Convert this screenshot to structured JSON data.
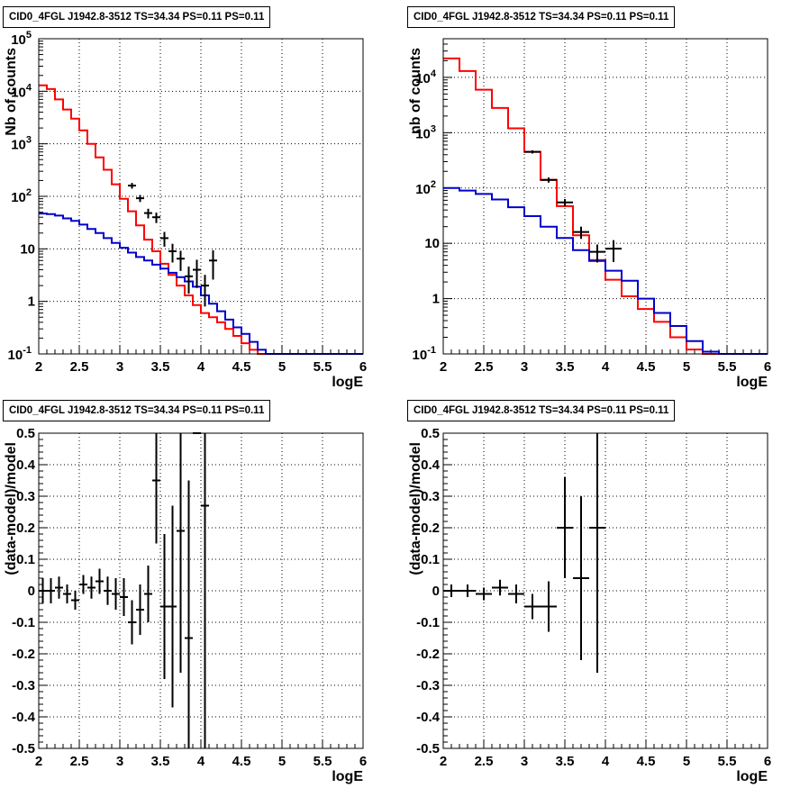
{
  "chart_data": [
    {
      "type": "histogram",
      "title": "CID0_4FGL J1942.8-3512 TS=34.34 PS=0.11 PS=0.11",
      "xlabel": "logE",
      "ylabel": "Nb of counts",
      "xlim": [
        2,
        6
      ],
      "ylim": [
        0.1,
        100000
      ],
      "yscale": "log",
      "grid": true,
      "xticks": [
        "2",
        "2.5",
        "3",
        "3.5",
        "4",
        "4.5",
        "5",
        "5.5",
        "6"
      ],
      "yticks": [
        "10^-1",
        "1",
        "10",
        "10^2",
        "10^3",
        "10^4",
        "10^5"
      ],
      "series": [
        {
          "color": "#ff0000",
          "bin_width": 0.1,
          "x": [
            2.0,
            2.1,
            2.2,
            2.3,
            2.4,
            2.5,
            2.6,
            2.7,
            2.8,
            2.9,
            3.0,
            3.1,
            3.2,
            3.3,
            3.4,
            3.5,
            3.6,
            3.7,
            3.8,
            3.9,
            4.0,
            4.1,
            4.2,
            4.3,
            4.4,
            4.5,
            4.6,
            4.7,
            4.8,
            4.9,
            5.0,
            5.1,
            5.2,
            5.3,
            5.4,
            5.5,
            5.6,
            5.7,
            5.8,
            5.9
          ],
          "values": [
            13000,
            11000,
            7000,
            4500,
            3000,
            1800,
            1000,
            550,
            320,
            170,
            90,
            52,
            28,
            15,
            9,
            5.2,
            3.2,
            2.0,
            1.3,
            0.85,
            0.6,
            0.5,
            0.4,
            0.3,
            0.22,
            0.16,
            0.12,
            0.1,
            0.1,
            0.1,
            0.1,
            0.1,
            0.1,
            0.1,
            0.1,
            0.1,
            0.1,
            0.1,
            0.1,
            0.1
          ]
        },
        {
          "color": "#0000cc",
          "bin_width": 0.1,
          "x": [
            2.0,
            2.1,
            2.2,
            2.3,
            2.4,
            2.5,
            2.6,
            2.7,
            2.8,
            2.9,
            3.0,
            3.1,
            3.2,
            3.3,
            3.4,
            3.5,
            3.6,
            3.7,
            3.8,
            3.9,
            4.0,
            4.1,
            4.2,
            4.3,
            4.4,
            4.5,
            4.6,
            4.7,
            4.8,
            4.9,
            5.0,
            5.1,
            5.2,
            5.3,
            5.4,
            5.5,
            5.6,
            5.7,
            5.8,
            5.9
          ],
          "values": [
            47,
            46,
            43,
            38,
            34,
            29,
            24,
            20,
            16,
            13,
            10.5,
            8.5,
            7,
            6,
            5,
            4.2,
            3.5,
            2.9,
            2.4,
            1.9,
            1.3,
            0.9,
            0.65,
            0.45,
            0.32,
            0.24,
            0.17,
            0.12,
            0.1,
            0.1,
            0.1,
            0.1,
            0.1,
            0.1,
            0.1,
            0.1,
            0.1,
            0.1,
            0.1,
            0.1
          ]
        }
      ],
      "points": {
        "x": [
          3.15,
          3.25,
          3.35,
          3.45,
          3.55,
          3.65,
          3.75,
          3.85,
          3.95,
          4.05,
          4.15
        ],
        "y": [
          160,
          92,
          48,
          40,
          16,
          9,
          6.5,
          3,
          4,
          2,
          6
        ],
        "err_low": [
          140,
          78,
          38,
          31,
          11,
          5.5,
          3.8,
          1.4,
          1.8,
          0.8,
          2.6
        ],
        "err_high": [
          180,
          106,
          58,
          49,
          21,
          12.5,
          9.2,
          4.6,
          6.2,
          3.2,
          9.4
        ]
      }
    },
    {
      "type": "histogram",
      "title": "CID0_4FGL J1942.8-3512 TS=34.34 PS=0.11 PS=0.11",
      "xlabel": "logE",
      "ylabel": "nb of counts",
      "xlim": [
        2,
        6
      ],
      "ylim": [
        0.1,
        50000
      ],
      "yscale": "log",
      "grid": true,
      "xticks": [
        "2",
        "2.5",
        "3",
        "3.5",
        "4",
        "4.5",
        "5",
        "5.5",
        "6"
      ],
      "yticks": [
        "10^-1",
        "1",
        "10",
        "10^2",
        "10^3",
        "10^4"
      ],
      "series": [
        {
          "color": "#ff0000",
          "bin_width": 0.2,
          "x": [
            2.0,
            2.2,
            2.4,
            2.6,
            2.8,
            3.0,
            3.2,
            3.4,
            3.6,
            3.8,
            4.0,
            4.2,
            4.4,
            4.6,
            4.8,
            5.0,
            5.2,
            5.4,
            5.6,
            5.8
          ],
          "values": [
            22000,
            13000,
            6000,
            2800,
            1200,
            450,
            140,
            47,
            14,
            5,
            2.2,
            1.1,
            0.65,
            0.38,
            0.2,
            0.12,
            0.1,
            0.1,
            0.1,
            0.1
          ]
        },
        {
          "color": "#0000cc",
          "bin_width": 0.2,
          "x": [
            2.0,
            2.2,
            2.4,
            2.6,
            2.8,
            3.0,
            3.2,
            3.4,
            3.6,
            3.8,
            4.0,
            4.2,
            4.4,
            4.6,
            4.8,
            5.0,
            5.2,
            5.4,
            5.6,
            5.8
          ],
          "values": [
            100,
            90,
            78,
            62,
            45,
            31,
            20,
            12.5,
            7.5,
            4.8,
            3.2,
            2.1,
            1.0,
            0.55,
            0.32,
            0.17,
            0.11,
            0.1,
            0.1,
            0.1
          ]
        }
      ],
      "points": {
        "x": [
          3.1,
          3.3,
          3.5,
          3.7,
          3.9,
          4.1
        ],
        "y": [
          450,
          140,
          55,
          16,
          7,
          8
        ],
        "err_low": [
          420,
          125,
          47,
          12,
          4.5,
          4.6
        ],
        "err_high": [
          480,
          155,
          63,
          20,
          9.5,
          11.4
        ],
        "xerr": 0.1
      }
    },
    {
      "type": "scatter",
      "title": "CID0_4FGL J1942.8-3512 TS=34.34 PS=0.11 PS=0.11",
      "xlabel": "logE",
      "ylabel": "(data-model)/model",
      "xlim": [
        2,
        6
      ],
      "ylim": [
        -0.5,
        0.5
      ],
      "grid": true,
      "xticks": [
        "2",
        "2.5",
        "3",
        "3.5",
        "4",
        "4.5",
        "5",
        "5.5",
        "6"
      ],
      "yticks": [
        "-0.5",
        "-0.4",
        "-0.3",
        "-0.2",
        "-0.1",
        "0",
        "0.1",
        "0.2",
        "0.3",
        "0.4",
        "0.5"
      ],
      "points": {
        "xerr": 0.05,
        "x": [
          2.05,
          2.15,
          2.25,
          2.35,
          2.45,
          2.55,
          2.65,
          2.75,
          2.85,
          2.95,
          3.05,
          3.15,
          3.25,
          3.35,
          3.45,
          3.55,
          3.65,
          3.75,
          3.85,
          3.95,
          4.05
        ],
        "y": [
          0.0,
          0.0,
          0.01,
          -0.01,
          -0.03,
          0.02,
          0.01,
          0.03,
          0.0,
          -0.01,
          -0.02,
          -0.1,
          -0.06,
          -0.01,
          0.35,
          -0.05,
          -0.05,
          0.19,
          -0.15,
          0.5,
          0.27
        ],
        "err": [
          0.04,
          0.04,
          0.035,
          0.03,
          0.03,
          0.03,
          0.035,
          0.04,
          0.045,
          0.05,
          0.06,
          0.07,
          0.08,
          0.09,
          0.2,
          0.23,
          0.32,
          0.45,
          0.5,
          0.0,
          0.77
        ]
      }
    },
    {
      "type": "scatter",
      "title": "CID0_4FGL J1942.8-3512 TS=34.34 PS=0.11 PS=0.11",
      "xlabel": "logE",
      "ylabel": "(data-model)/model",
      "xlim": [
        2,
        6
      ],
      "ylim": [
        -0.5,
        0.5
      ],
      "grid": true,
      "xticks": [
        "2",
        "2.5",
        "3",
        "3.5",
        "4",
        "4.5",
        "5",
        "5.5",
        "6"
      ],
      "yticks": [
        "-0.5",
        "-0.4",
        "-0.3",
        "-0.2",
        "-0.1",
        "0",
        "0.1",
        "0.2",
        "0.3",
        "0.4",
        "0.5"
      ],
      "points": {
        "xerr": 0.1,
        "x": [
          2.1,
          2.3,
          2.5,
          2.7,
          2.9,
          3.1,
          3.3,
          3.5,
          3.7,
          3.9
        ],
        "y": [
          0.0,
          0.0,
          -0.01,
          0.01,
          -0.01,
          -0.05,
          -0.05,
          0.2,
          0.04,
          0.2
        ],
        "err": [
          0.02,
          0.02,
          0.02,
          0.025,
          0.03,
          0.04,
          0.08,
          0.16,
          0.26,
          0.46
        ]
      }
    }
  ]
}
